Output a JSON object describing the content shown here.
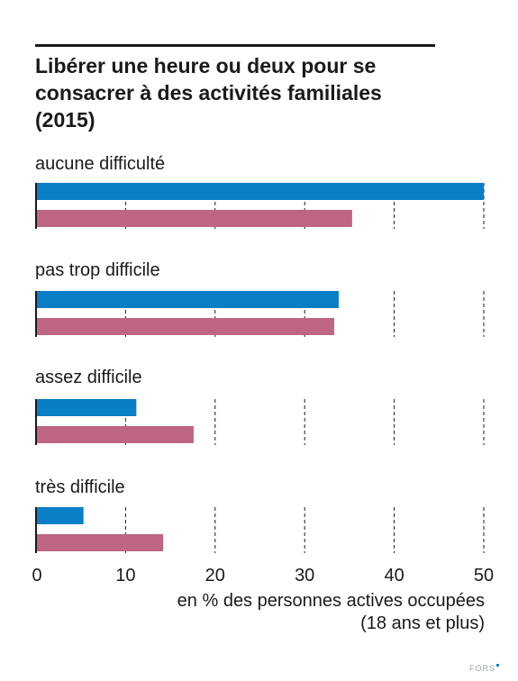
{
  "chart_data": {
    "type": "bar",
    "orientation": "horizontal",
    "title_lines": [
      "Libérer une heure ou deux pour se",
      "consacrer à des activités familiales",
      "(2015)"
    ],
    "categories": [
      "aucune difficulté",
      "pas trop difficile",
      "assez difficile",
      "très difficile"
    ],
    "series": [
      {
        "color": "#0a7ec6",
        "values": [
          50.0,
          33.8,
          11.2,
          5.3
        ]
      },
      {
        "color": "#be6583",
        "values": [
          35.3,
          33.3,
          17.6,
          14.2
        ]
      }
    ],
    "xlim": [
      0,
      50
    ],
    "xticks": [
      0,
      10,
      20,
      30,
      40,
      50
    ],
    "xlabel_lines": [
      "en % des personnes actives occupées",
      "(18 ans et plus)"
    ],
    "grid": "vertical-dashed"
  },
  "footer": {
    "brand": "FORS"
  }
}
